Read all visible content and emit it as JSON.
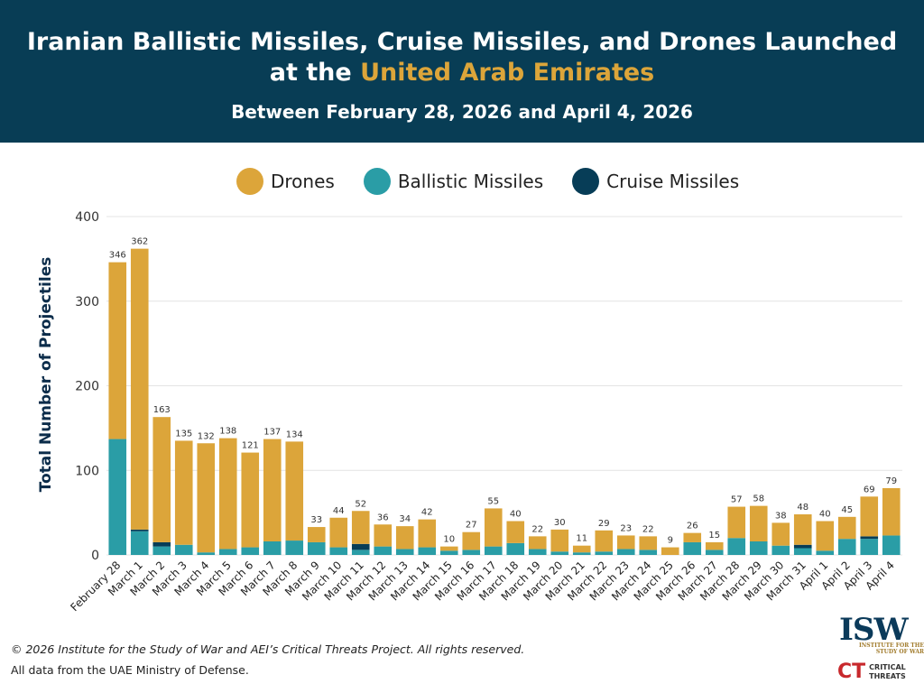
{
  "header": {
    "title_part1": "Iranian Ballistic Missiles, Cruise Missiles, and Drones Launched",
    "title_part2": "at the ",
    "title_highlight": "United Arab Emirates",
    "subtitle": "Between February 28, 2026 and April 4, 2026"
  },
  "colors": {
    "header_bg": "#083d55",
    "highlight": "#dca53a",
    "drones": "#dca53a",
    "ballistic": "#2a9da6",
    "cruise": "#073d57"
  },
  "legend": [
    {
      "label": "Drones",
      "color": "#dca53a"
    },
    {
      "label": "Ballistic Missiles",
      "color": "#2a9da6"
    },
    {
      "label": "Cruise Missiles",
      "color": "#073d57"
    }
  ],
  "chart_data": {
    "type": "bar",
    "stacked": true,
    "ylabel": "Total Number of Projectiles",
    "ylim": [
      0,
      400
    ],
    "yticks": [
      0,
      100,
      200,
      300,
      400
    ],
    "grid": true,
    "legend_position": "top",
    "categories": [
      "February 28",
      "March 1",
      "March 2",
      "March 3",
      "March 4",
      "March 5",
      "March 6",
      "March 7",
      "March 8",
      "March 9",
      "March 10",
      "March 11",
      "March 12",
      "March 13",
      "March 14",
      "March 15",
      "March 16",
      "March 17",
      "March 18",
      "March 19",
      "March 20",
      "March 21",
      "March 22",
      "March 23",
      "March 24",
      "March 25",
      "March 26",
      "March 27",
      "March 28",
      "March 29",
      "March 30",
      "March 31",
      "April 1",
      "April 2",
      "April 3",
      "April 4"
    ],
    "totals": [
      346,
      362,
      163,
      135,
      132,
      138,
      121,
      137,
      134,
      33,
      44,
      52,
      36,
      34,
      42,
      10,
      27,
      55,
      40,
      22,
      30,
      11,
      29,
      23,
      22,
      9,
      26,
      15,
      57,
      58,
      38,
      48,
      40,
      45,
      69,
      79
    ],
    "series": [
      {
        "name": "Ballistic Missiles",
        "values": [
          137,
          28,
          10,
          12,
          3,
          7,
          9,
          16,
          17,
          15,
          9,
          6,
          10,
          7,
          9,
          5,
          6,
          10,
          14,
          7,
          4,
          3,
          4,
          7,
          6,
          0,
          15,
          6,
          20,
          16,
          11,
          8,
          5,
          19,
          19,
          23
        ]
      },
      {
        "name": "Cruise Missiles",
        "values": [
          0,
          2,
          5,
          0,
          0,
          0,
          0,
          0,
          0,
          0,
          0,
          7,
          0,
          0,
          0,
          0,
          0,
          0,
          0,
          0,
          0,
          0,
          0,
          0,
          0,
          0,
          0,
          0,
          0,
          0,
          0,
          4,
          0,
          0,
          3,
          0
        ]
      },
      {
        "name": "Drones",
        "values": [
          209,
          332,
          148,
          123,
          129,
          131,
          112,
          121,
          117,
          18,
          35,
          39,
          26,
          27,
          33,
          5,
          21,
          45,
          26,
          15,
          26,
          8,
          25,
          16,
          16,
          9,
          11,
          9,
          37,
          42,
          27,
          36,
          35,
          26,
          47,
          56
        ]
      }
    ]
  },
  "footer": {
    "copyright": "© 2026 Institute for the Study of War and AEI’s Critical Threats Project. All rights reserved.",
    "source": "All data from the UAE Ministry of Defense."
  },
  "logos": {
    "isw": "ISW",
    "isw_sub": "INSTITUTE FOR THE STUDY OF WAR",
    "ct_mark": "CT",
    "ct_text1": "CRITICAL",
    "ct_text2": "THREATS"
  }
}
